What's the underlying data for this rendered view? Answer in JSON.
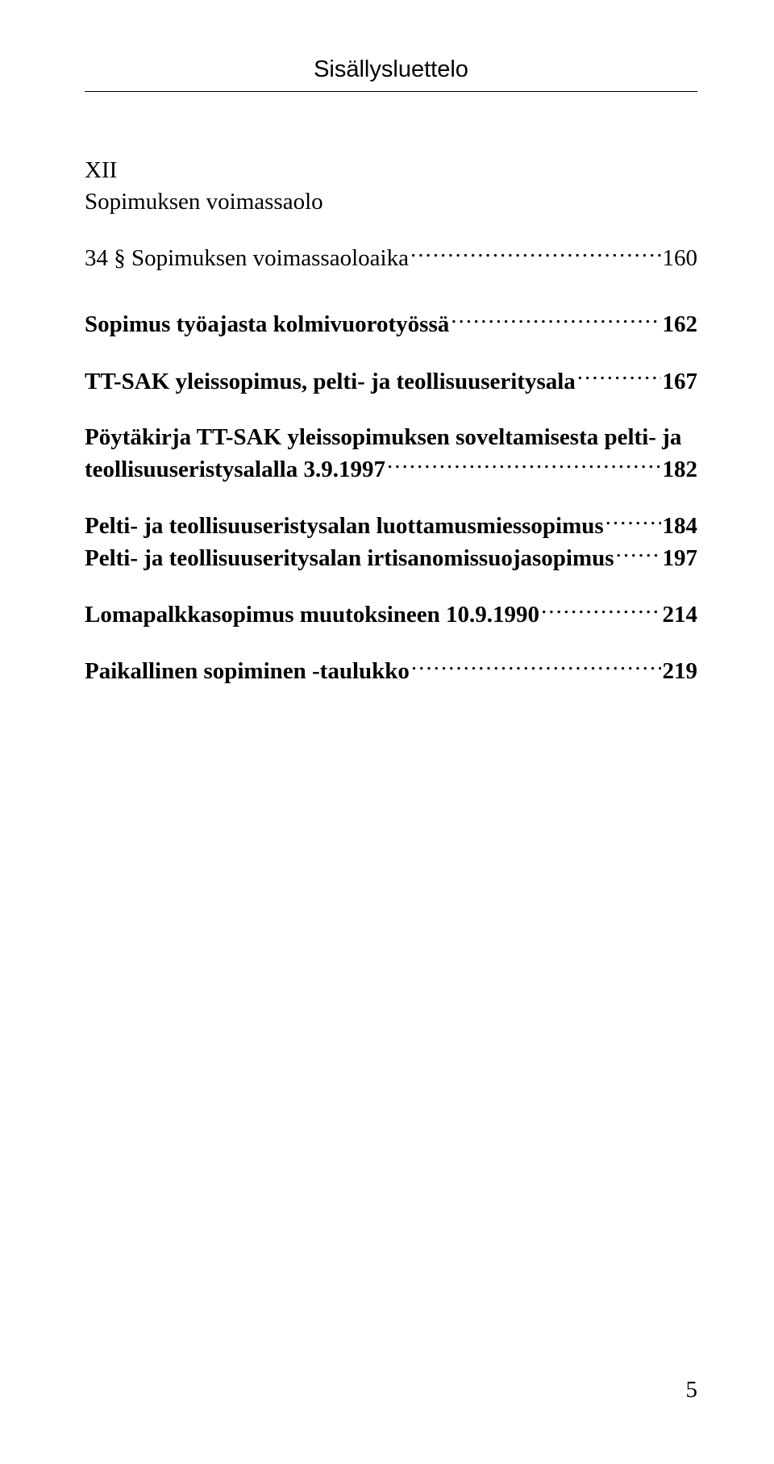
{
  "header": "Sisällysluettelo",
  "chapter": {
    "num": "XII",
    "title": "Sopimuksen voimassaolo"
  },
  "entries": {
    "e1": {
      "label": "34 § Sopimuksen voimassaoloaika",
      "page": "160"
    },
    "e2": {
      "label": "Sopimus työajasta kolmivuorotyössä",
      "page": "162"
    },
    "e3": {
      "label": "TT-SAK yleissopimus, pelti- ja teollisuuseritysala",
      "page": "167"
    },
    "e4": {
      "line1": "Pöytäkirja TT-SAK yleissopimuksen soveltamisesta pelti- ja",
      "line2": "teollisuuseristysalalla 3.9.1997",
      "page": "182"
    },
    "e5": {
      "label": "Pelti- ja teollisuuseristysalan luottamusmiessopimus",
      "page": "184"
    },
    "e6": {
      "label": "Pelti- ja teollisuuseritysalan irtisanomissuojasopimus",
      "page": "197"
    },
    "e7": {
      "label": "Lomapalkkasopimus muutoksineen 10.9.1990",
      "page": "214"
    },
    "e8": {
      "label": "Paikallinen sopiminen -taulukko",
      "page": "219"
    }
  },
  "pageNumber": "5"
}
